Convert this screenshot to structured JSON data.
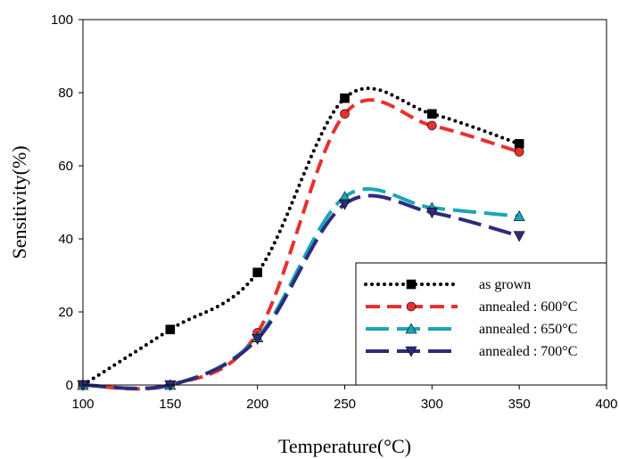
{
  "chart_data": {
    "type": "line",
    "title": "",
    "xlabel": "Temperature(°C)",
    "ylabel": "Sensitivity(%)",
    "xlim": [
      100,
      400
    ],
    "ylim": [
      0,
      100
    ],
    "xticks": [
      100,
      150,
      200,
      250,
      300,
      350,
      400
    ],
    "yticks": [
      0,
      20,
      40,
      60,
      80,
      100
    ],
    "grid": false,
    "legend_position": "bottom-right",
    "series": [
      {
        "name": "as grown",
        "x": [
          100,
          150,
          200,
          250,
          300,
          350
        ],
        "values": [
          0,
          15.2,
          30.8,
          78.5,
          74.2,
          66.0
        ],
        "color": "#000000",
        "line_style": "dotted",
        "marker": "square"
      },
      {
        "name": "annealed : 600°C",
        "x": [
          100,
          150,
          200,
          250,
          300,
          350
        ],
        "values": [
          0,
          0,
          14.3,
          74.2,
          71.0,
          63.8
        ],
        "color": "#e8312f",
        "line_style": "dashed",
        "marker": "circle"
      },
      {
        "name": "annealed : 650°C",
        "x": [
          100,
          150,
          200,
          250,
          300,
          350
        ],
        "values": [
          0,
          0,
          13.0,
          51.5,
          48.5,
          46.2
        ],
        "color": "#1aa6b5",
        "line_style": "long-dashed",
        "marker": "triangle-up"
      },
      {
        "name": "annealed : 700°C",
        "x": [
          100,
          150,
          200,
          250,
          300,
          350
        ],
        "values": [
          0,
          0,
          12.6,
          49.5,
          47.2,
          40.8
        ],
        "color": "#2e2b7a",
        "line_style": "long-dashed",
        "marker": "triangle-down"
      }
    ]
  }
}
